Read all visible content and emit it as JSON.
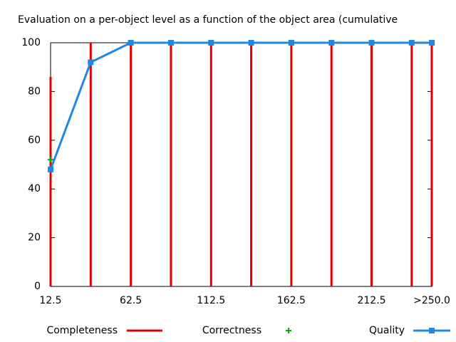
{
  "chart_data": {
    "type": "line",
    "title": "Evaluation on a per-object level as a function of the object area (cumulative",
    "x": [
      12.5,
      37.5,
      62.5,
      87.5,
      112.5,
      137.5,
      162.5,
      187.5,
      212.5,
      237.5,
      250
    ],
    "xlim": [
      12.5,
      250
    ],
    "xticks": [
      12.5,
      62.5,
      112.5,
      162.5,
      212.5,
      {
        "value": 250,
        "label": ">250.0"
      }
    ],
    "ylim": [
      0,
      100
    ],
    "yticks": [
      0,
      20,
      40,
      60,
      80,
      100
    ],
    "series": [
      {
        "name": "Completeness",
        "color": "#e00000",
        "style": "impulses",
        "values": [
          86,
          100,
          100,
          100,
          100,
          100,
          100,
          100,
          100,
          100,
          100
        ]
      },
      {
        "name": "Correctness",
        "color": "#00b000",
        "style": "points",
        "values": [
          52,
          92,
          100,
          100,
          100,
          100,
          100,
          100,
          100,
          100,
          100
        ]
      },
      {
        "name": "Quality",
        "color": "#1e88e5",
        "style": "linespoints",
        "values": [
          48,
          92,
          100,
          100,
          100,
          100,
          100,
          100,
          100,
          100,
          100
        ]
      }
    ]
  }
}
